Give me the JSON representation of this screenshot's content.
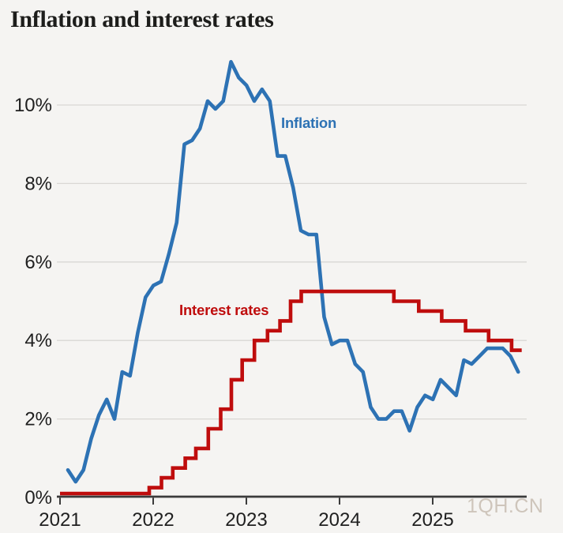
{
  "chart_data": {
    "type": "line",
    "title": "Inflation and interest rates",
    "x_tick_labels": [
      "2021",
      "2022",
      "2023",
      "2024",
      "2025"
    ],
    "y_tick_labels": [
      "0%",
      "2%",
      "4%",
      "6%",
      "8%",
      "10%"
    ],
    "y_ticks_pct": [
      0,
      2,
      4,
      6,
      8,
      10
    ],
    "ylim": [
      0,
      11.5
    ],
    "x_range": [
      "2021-01",
      "2025-12"
    ],
    "grid": "horizontal-only",
    "legend_position": "inline-labels-on-chart",
    "watermark": "1QH.CN",
    "series": [
      {
        "name": "Inflation",
        "color": "#2d72b4",
        "unit": "%",
        "frequency": "monthly",
        "start": "2021-01",
        "end": "2025-11",
        "values": [
          0.7,
          0.4,
          0.7,
          1.5,
          2.1,
          2.5,
          2.0,
          3.2,
          3.1,
          4.2,
          5.1,
          5.4,
          5.5,
          6.2,
          7.0,
          9.0,
          9.1,
          9.4,
          10.1,
          9.9,
          10.1,
          11.1,
          10.7,
          10.5,
          10.1,
          10.4,
          10.1,
          8.7,
          8.7,
          7.9,
          6.8,
          6.7,
          6.7,
          4.6,
          3.9,
          4.0,
          4.0,
          3.4,
          3.2,
          2.3,
          2.0,
          2.0,
          2.2,
          2.2,
          1.7,
          2.3,
          2.6,
          2.5,
          3.0,
          2.8,
          2.6,
          3.5,
          3.4,
          3.6,
          3.8,
          3.8,
          3.8,
          3.6,
          3.2
        ]
      },
      {
        "name": "Interest rates",
        "color": "#bf0d0d",
        "unit": "%",
        "style": "step",
        "steps": [
          {
            "date": "2021-01-01",
            "rate": 0.1
          },
          {
            "date": "2021-12-16",
            "rate": 0.25
          },
          {
            "date": "2022-02-03",
            "rate": 0.5
          },
          {
            "date": "2022-03-17",
            "rate": 0.75
          },
          {
            "date": "2022-05-05",
            "rate": 1.0
          },
          {
            "date": "2022-06-16",
            "rate": 1.25
          },
          {
            "date": "2022-08-04",
            "rate": 1.75
          },
          {
            "date": "2022-09-22",
            "rate": 2.25
          },
          {
            "date": "2022-11-03",
            "rate": 3.0
          },
          {
            "date": "2022-12-15",
            "rate": 3.5
          },
          {
            "date": "2023-02-02",
            "rate": 4.0
          },
          {
            "date": "2023-03-23",
            "rate": 4.25
          },
          {
            "date": "2023-05-11",
            "rate": 4.5
          },
          {
            "date": "2023-06-22",
            "rate": 5.0
          },
          {
            "date": "2023-08-03",
            "rate": 5.25
          },
          {
            "date": "2024-08-01",
            "rate": 5.0
          },
          {
            "date": "2024-11-07",
            "rate": 4.75
          },
          {
            "date": "2025-02-06",
            "rate": 4.5
          },
          {
            "date": "2025-05-08",
            "rate": 4.25
          },
          {
            "date": "2025-08-07",
            "rate": 4.0
          },
          {
            "date": "2025-11-06",
            "rate": 3.75
          }
        ],
        "end_date": "2025-12-15"
      }
    ]
  },
  "colors": {
    "background": "#f5f4f2",
    "grid": "#d9d7d4",
    "axis": "#3b3b3b",
    "title": "#1d1d1b",
    "tick_label": "#202020",
    "inflation": "#2d72b4",
    "interest": "#bf0d0d",
    "watermark": "#c9bfb4"
  }
}
